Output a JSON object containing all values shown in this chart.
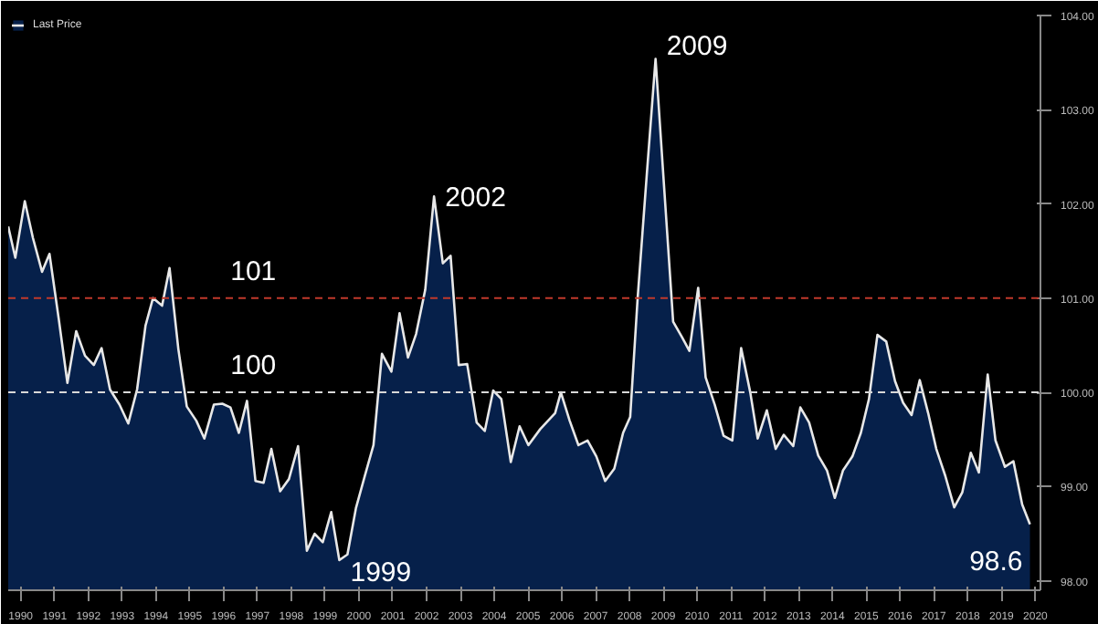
{
  "chart_data": {
    "type": "area",
    "x": [
      1990.13,
      1990.34,
      1990.62,
      1990.86,
      1991.13,
      1991.35,
      1991.62,
      1991.88,
      1992.14,
      1992.4,
      1992.66,
      1992.89,
      1993.14,
      1993.42,
      1993.68,
      1993.94,
      1994.19,
      1994.41,
      1994.68,
      1994.9,
      1995.16,
      1995.41,
      1995.69,
      1995.93,
      1996.21,
      1996.46,
      1996.7,
      1996.95,
      1997.19,
      1997.44,
      1997.68,
      1997.91,
      1998.17,
      1998.43,
      1998.7,
      1998.96,
      1999.19,
      1999.43,
      1999.68,
      1999.92,
      2000.16,
      2000.41,
      2000.67,
      2000.93,
      2001.18,
      2001.46,
      2001.7,
      2001.95,
      2002.19,
      2002.46,
      2002.72,
      2002.98,
      2003.21,
      2003.45,
      2003.7,
      2003.98,
      2004.22,
      2004.47,
      2004.71,
      2004.99,
      2005.25,
      2005.51,
      2005.86,
      2006.3,
      2006.47,
      2006.73,
      2006.99,
      2007.26,
      2007.52,
      2007.78,
      2008.05,
      2008.31,
      2008.52,
      2008.74,
      2009.01,
      2009.27,
      2009.53,
      2009.79,
      2010.06,
      2010.27,
      2010.53,
      2010.75,
      2011.02,
      2011.28,
      2011.54,
      2011.8,
      2012.07,
      2012.29,
      2012.56,
      2012.82,
      2013.06,
      2013.34,
      2013.55,
      2013.81,
      2014.08,
      2014.34,
      2014.57,
      2014.81,
      2015.09,
      2015.34,
      2015.58,
      2015.83,
      2016.09,
      2016.35,
      2016.59,
      2016.84,
      2017.08,
      2017.33,
      2017.57,
      2017.84,
      2018.1,
      2018.34,
      2018.59,
      2018.83,
      2019.09,
      2019.32,
      2019.6,
      2019.85,
      2020.11,
      2020.34
    ],
    "series": [
      {
        "name": "Last Price",
        "color": "#e8e8e8",
        "values": [
          101.76,
          101.43,
          102.03,
          101.64,
          101.28,
          101.47,
          100.79,
          100.1,
          100.65,
          100.39,
          100.29,
          100.47,
          100.03,
          99.87,
          99.67,
          100.03,
          100.71,
          101.0,
          100.92,
          101.32,
          100.46,
          99.85,
          99.7,
          99.51,
          99.87,
          99.88,
          99.84,
          99.57,
          99.91,
          99.06,
          99.04,
          99.4,
          98.95,
          99.08,
          99.43,
          98.32,
          98.5,
          98.41,
          98.73,
          98.22,
          98.28,
          98.77,
          99.11,
          99.44,
          100.41,
          100.22,
          100.84,
          100.37,
          100.62,
          101.09,
          102.08,
          101.37,
          101.45,
          100.29,
          100.3,
          99.68,
          99.59,
          100.02,
          99.93,
          99.26,
          99.64,
          99.44,
          99.61,
          99.78,
          100.0,
          99.7,
          99.44,
          99.49,
          99.32,
          99.06,
          99.19,
          99.57,
          99.74,
          101.0,
          102.31,
          103.54,
          102.14,
          100.75,
          100.58,
          100.44,
          101.11,
          100.16,
          99.87,
          99.54,
          99.49,
          100.47,
          100.0,
          99.51,
          99.81,
          99.4,
          99.55,
          99.43,
          99.84,
          99.68,
          99.33,
          99.17,
          98.88,
          99.17,
          99.32,
          99.57,
          99.93,
          100.61,
          100.54,
          100.12,
          99.89,
          99.76,
          100.13,
          99.78,
          99.4,
          99.11,
          98.78,
          98.94,
          99.36,
          99.15,
          100.19,
          99.49,
          99.21,
          99.27,
          98.81,
          98.6
        ]
      }
    ],
    "xlim": [
      1990.13,
      2020.65
    ],
    "ylim": [
      97.9,
      104.0
    ],
    "xticks": [
      {
        "value": 1990.5,
        "label": "1990"
      },
      {
        "value": 1991.5,
        "label": "1991"
      },
      {
        "value": 1992.5,
        "label": "1992"
      },
      {
        "value": 1993.5,
        "label": "1993"
      },
      {
        "value": 1994.5,
        "label": "1994"
      },
      {
        "value": 1995.5,
        "label": "1995"
      },
      {
        "value": 1996.5,
        "label": "1996"
      },
      {
        "value": 1997.5,
        "label": "1997"
      },
      {
        "value": 1998.5,
        "label": "1998"
      },
      {
        "value": 1999.5,
        "label": "1999"
      },
      {
        "value": 2000.5,
        "label": "2000"
      },
      {
        "value": 2001.5,
        "label": "2001"
      },
      {
        "value": 2002.5,
        "label": "2002"
      },
      {
        "value": 2003.5,
        "label": "2003"
      },
      {
        "value": 2004.5,
        "label": "2004"
      },
      {
        "value": 2005.5,
        "label": "2005"
      },
      {
        "value": 2006.5,
        "label": "2006"
      },
      {
        "value": 2007.5,
        "label": "2007"
      },
      {
        "value": 2008.5,
        "label": "2008"
      },
      {
        "value": 2009.5,
        "label": "2009"
      },
      {
        "value": 2010.5,
        "label": "2010"
      },
      {
        "value": 2011.5,
        "label": "2011"
      },
      {
        "value": 2012.5,
        "label": "2012"
      },
      {
        "value": 2013.5,
        "label": "2013"
      },
      {
        "value": 2014.5,
        "label": "2014"
      },
      {
        "value": 2015.5,
        "label": "2015"
      },
      {
        "value": 2016.5,
        "label": "2016"
      },
      {
        "value": 2017.5,
        "label": "2017"
      },
      {
        "value": 2018.5,
        "label": "2018"
      },
      {
        "value": 2019.5,
        "label": "2019"
      },
      {
        "value": 2020.5,
        "label": "2020"
      }
    ],
    "yticks": [
      {
        "value": 98,
        "label": "98.00"
      },
      {
        "value": 99,
        "label": "99.00"
      },
      {
        "value": 100,
        "label": "100.00"
      },
      {
        "value": 101,
        "label": "101.00"
      },
      {
        "value": 102,
        "label": "102.00"
      },
      {
        "value": 103,
        "label": "103.00"
      },
      {
        "value": 104,
        "label": "104.00"
      }
    ],
    "ref_lines": [
      {
        "axis": "y",
        "value": 101,
        "label": "101",
        "color": "#c0392b",
        "line_style": "dashed"
      },
      {
        "axis": "y",
        "value": 100,
        "label": "100",
        "color": "#d8d8d8",
        "line_style": "dashed"
      }
    ],
    "annotations": [
      {
        "text": "2002",
        "x": 2002.72,
        "y": 102.08
      },
      {
        "text": "2009",
        "x": 2009.27,
        "y": 103.54
      },
      {
        "text": "1999",
        "x": 1999.92,
        "y": 98.22
      },
      {
        "text": "98.6",
        "x": 2020.34,
        "y": 98.6
      }
    ],
    "legend": "top left",
    "grid": false
  }
}
